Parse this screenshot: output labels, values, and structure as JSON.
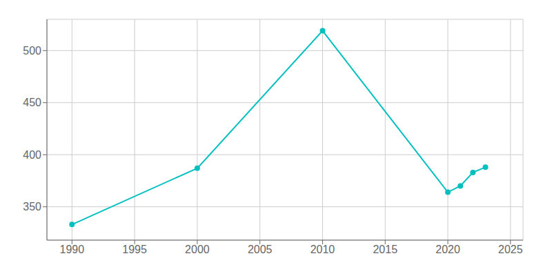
{
  "chart_data": {
    "type": "line",
    "x": [
      1990,
      2000,
      2010,
      2020,
      2021,
      2022,
      2023
    ],
    "values": [
      333,
      387,
      519,
      364,
      370,
      383,
      388
    ],
    "color": "#00BFBF",
    "marker": "circle",
    "xlim": [
      1988,
      2026
    ],
    "ylim": [
      318,
      530
    ],
    "xticks": [
      1990,
      1995,
      2000,
      2005,
      2010,
      2015,
      2020,
      2025
    ],
    "yticks": [
      350,
      400,
      450,
      500
    ],
    "grid": true
  }
}
